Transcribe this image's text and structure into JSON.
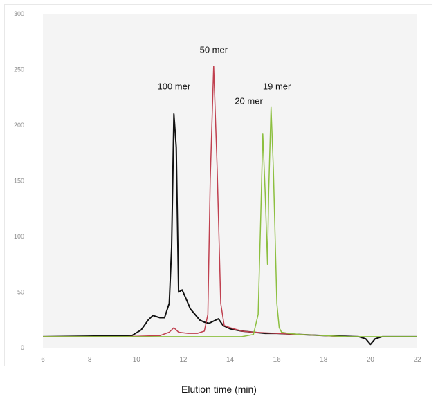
{
  "chart_data": {
    "type": "line",
    "title": "",
    "xlabel": "Elution time (min)",
    "ylabel": "",
    "xlim": [
      6,
      22
    ],
    "ylim": [
      0,
      300
    ],
    "x_ticks": [
      6,
      8,
      10,
      12,
      14,
      16,
      18,
      20,
      22
    ],
    "y_ticks": [
      0,
      50,
      100,
      150,
      200,
      250,
      300
    ],
    "grid": false,
    "annotations": [
      {
        "text": "50 mer",
        "x": 13.3,
        "y": 265
      },
      {
        "text": "100 mer",
        "x": 11.6,
        "y": 232
      },
      {
        "text": "19 mer",
        "x": 16.0,
        "y": 232
      },
      {
        "text": "20 mer",
        "x": 14.8,
        "y": 219
      }
    ],
    "series": [
      {
        "color": "#111111",
        "x": [
          6.0,
          9.8,
          10.2,
          10.5,
          10.7,
          11.0,
          11.2,
          11.4,
          11.5,
          11.6,
          11.7,
          11.8,
          11.95,
          12.1,
          12.3,
          12.5,
          12.7,
          12.9,
          13.1,
          13.3,
          13.5,
          13.7,
          14.0,
          14.5,
          15.0,
          15.5,
          16.0,
          17.0,
          18.0,
          19.5,
          19.8,
          20.0,
          20.2,
          20.5,
          22.0
        ],
        "y": [
          10,
          11,
          16,
          25,
          29,
          27,
          27,
          40,
          90,
          210,
          180,
          50,
          52,
          45,
          35,
          30,
          25,
          23,
          22,
          24,
          26,
          20,
          17,
          15,
          14,
          13,
          13,
          12,
          11,
          10,
          8,
          3,
          8,
          10,
          10
        ]
      },
      {
        "color": "#c0404f",
        "x": [
          6.0,
          9.5,
          11.0,
          11.4,
          11.6,
          11.8,
          12.2,
          12.6,
          12.9,
          13.05,
          13.15,
          13.3,
          13.45,
          13.6,
          13.75,
          14.0,
          14.5,
          15.0,
          16.0,
          17.0,
          18.0,
          18.8
        ],
        "y": [
          10,
          10,
          11,
          14,
          18,
          14,
          13,
          13,
          15,
          30,
          150,
          253,
          160,
          40,
          20,
          18,
          15,
          14,
          13,
          12,
          11,
          10
        ]
      },
      {
        "color": "#8cbf3f",
        "x": [
          6.0,
          14.5,
          15.0,
          15.2,
          15.3,
          15.4,
          15.5,
          15.6,
          15.65,
          15.75,
          15.85,
          16.0,
          16.1,
          16.2,
          16.5,
          17.0,
          18.0,
          19.0,
          22.0
        ],
        "y": [
          10,
          10,
          12,
          30,
          110,
          192,
          140,
          75,
          140,
          216,
          160,
          40,
          18,
          14,
          13,
          12,
          11,
          10,
          10
        ]
      }
    ]
  }
}
